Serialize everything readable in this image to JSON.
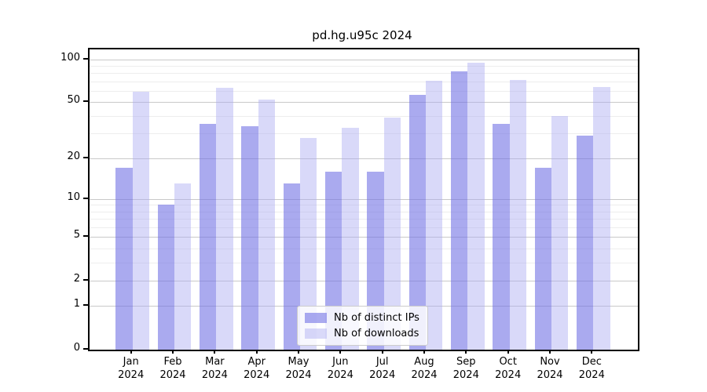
{
  "title": "pd.hg.u95c 2024",
  "legend": {
    "items": [
      {
        "label": "Nb of distinct IPs",
        "color": "rgba(113,113,229,0.60)"
      },
      {
        "label": "Nb of downloads",
        "color": "rgba(170,170,242,0.45)"
      }
    ]
  },
  "chart_data": {
    "type": "bar",
    "title": "pd.hg.u95c 2024",
    "scale": "log1p",
    "categories": [
      "Jan 2024",
      "Feb 2024",
      "Mar 2024",
      "Apr 2024",
      "May 2024",
      "Jun 2024",
      "Jul 2024",
      "Aug 2024",
      "Sep 2024",
      "Oct 2024",
      "Nov 2024",
      "Dec 2024"
    ],
    "month_labels": [
      "Jan",
      "Feb",
      "Mar",
      "Apr",
      "May",
      "Jun",
      "Jul",
      "Aug",
      "Sep",
      "Oct",
      "Nov",
      "Dec"
    ],
    "year_label": "2024",
    "series": [
      {
        "name": "Nb of distinct IPs",
        "color": "rgba(113,113,229,0.60)",
        "values": [
          17,
          9,
          35,
          34,
          13,
          16,
          16,
          56,
          82,
          35,
          17,
          29
        ]
      },
      {
        "name": "Nb of downloads",
        "color": "rgba(170,170,242,0.45)",
        "values": [
          59,
          13,
          63,
          52,
          28,
          33,
          39,
          71,
          95,
          72,
          40,
          64
        ]
      }
    ],
    "xlabel": "",
    "ylabel": "",
    "yticks": [
      0,
      1,
      2,
      5,
      10,
      20,
      50,
      100
    ],
    "ytick_labels": [
      "0",
      "1",
      "2",
      "5",
      "10",
      "20",
      "50",
      "100"
    ],
    "minor_yticks": [
      3,
      4,
      6,
      7,
      8,
      9,
      30,
      40,
      60,
      70,
      80,
      90
    ],
    "ylim": [
      0,
      117
    ],
    "grid": true,
    "legend_position": "bottom-center"
  }
}
